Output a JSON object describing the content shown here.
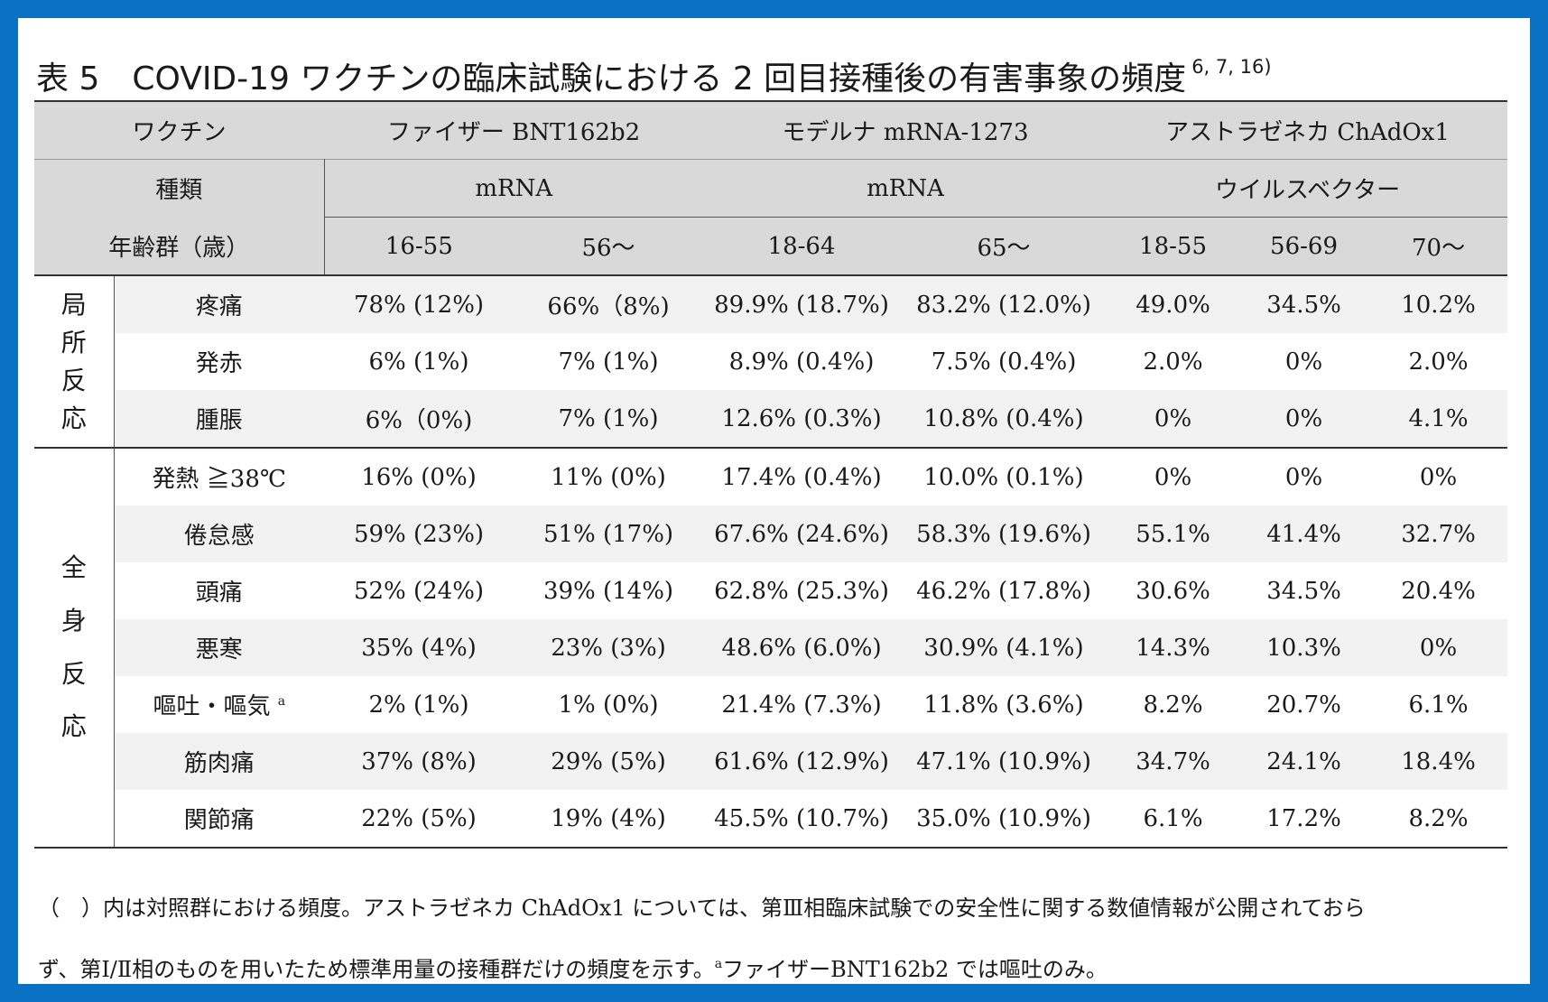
{
  "title": {
    "text": "表 5　COVID-19 ワクチンの臨床試験における 2 回目接種後の有害事象の頻度",
    "refs": "6, 7, 16)"
  },
  "header": {
    "vaccine_label": "ワクチン",
    "pfizer": "ファイザー  BNT162b2",
    "moderna": "モデルナ  mRNA-1273",
    "astra": "アストラゼネカ  ChAdOx1",
    "type_label": "種類",
    "pfizer_type": "mRNA",
    "moderna_type": "mRNA",
    "astra_type": "ウイルスベクター",
    "age_label": "年齢群（歳）",
    "ages": [
      "16-55",
      "56～",
      "18-64",
      "65～",
      "18-55",
      "56-69",
      "70～"
    ]
  },
  "groups": {
    "local": "局所反応",
    "systemic": "全身反応"
  },
  "local_rows": [
    {
      "item": "疼痛",
      "values": [
        "78% (12%)",
        "66%（8%)",
        "89.9% (18.7%)",
        "83.2% (12.0%)",
        "49.0%",
        "34.5%",
        "10.2%"
      ]
    },
    {
      "item": "発赤",
      "values": [
        "6% (1%)",
        "7% (1%)",
        "8.9% (0.4%)",
        "7.5% (0.4%)",
        "2.0%",
        "0%",
        "2.0%"
      ]
    },
    {
      "item": "腫脹",
      "values": [
        "6%（0%)",
        "7% (1%)",
        "12.6% (0.3%)",
        "10.8% (0.4%)",
        "0%",
        "0%",
        "4.1%"
      ]
    }
  ],
  "systemic_rows": [
    {
      "item": "発熱  ≧38℃",
      "sup": "",
      "values": [
        "16% (0%)",
        "11% (0%)",
        "17.4% (0.4%)",
        "10.0% (0.1%)",
        "0%",
        "0%",
        "0%"
      ]
    },
    {
      "item": "倦怠感",
      "sup": "",
      "values": [
        "59% (23%)",
        "51% (17%)",
        "67.6% (24.6%)",
        "58.3% (19.6%)",
        "55.1%",
        "41.4%",
        "32.7%"
      ]
    },
    {
      "item": "頭痛",
      "sup": "",
      "values": [
        "52% (24%)",
        "39% (14%)",
        "62.8% (25.3%)",
        "46.2% (17.8%)",
        "30.6%",
        "34.5%",
        "20.4%"
      ]
    },
    {
      "item": "悪寒",
      "sup": "",
      "values": [
        "35% (4%)",
        "23% (3%)",
        "48.6% (6.0%)",
        "30.9% (4.1%)",
        "14.3%",
        "10.3%",
        "0%"
      ]
    },
    {
      "item": "嘔吐・嘔気",
      "sup": "a",
      "values": [
        "2% (1%)",
        "1% (0%)",
        "21.4% (7.3%)",
        "11.8% (3.6%)",
        "8.2%",
        "20.7%",
        "6.1%"
      ]
    },
    {
      "item": "筋肉痛",
      "sup": "",
      "values": [
        "37% (8%)",
        "29% (5%)",
        "61.6% (12.9%)",
        "47.1% (10.9%)",
        "34.7%",
        "24.1%",
        "18.4%"
      ]
    },
    {
      "item": "関節痛",
      "sup": "",
      "values": [
        "22% (5%)",
        "19% (4%)",
        "45.5% (10.7%)",
        "35.0% (10.9%)",
        "6.1%",
        "17.2%",
        "8.2%"
      ]
    }
  ],
  "note": {
    "line1": "（　）内は対照群における頻度。アストラゼネカ ChAdOx1 については、第Ⅲ相臨床試験での安全性に関する数値情報が公開されておら",
    "line2_a": "ず、第Ⅰ/Ⅱ相のものを用いたため標準用量の接種群だけの頻度を示す。",
    "line2_sup": "a",
    "line2_b": "ファイザーBNT162b2 では嘔吐のみ。"
  }
}
